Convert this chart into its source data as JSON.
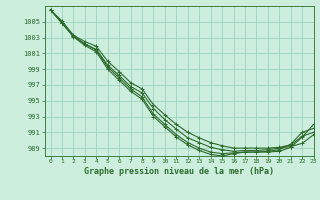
{
  "title": "Graphe pression niveau de la mer (hPa)",
  "background_color": "#cceedd",
  "grid_color": "#99ccbb",
  "line_color": "#2d6b2d",
  "xlim": [
    -0.5,
    23
  ],
  "ylim": [
    988.0,
    1007.0
  ],
  "yticks": [
    989,
    991,
    993,
    995,
    997,
    999,
    1001,
    1003,
    1005
  ],
  "xtick_labels": [
    "0",
    "1",
    "2",
    "3",
    "4",
    "5",
    "6",
    "7",
    "8",
    "9",
    "10",
    "11",
    "12",
    "13",
    "14",
    "15",
    "16",
    "17",
    "18",
    "19",
    "20",
    "21",
    "22",
    "23"
  ],
  "series": [
    [
      1006.5,
      1005.1,
      1003.3,
      1002.5,
      1001.9,
      1000.0,
      998.7,
      997.3,
      996.5,
      994.5,
      993.2,
      992.0,
      991.0,
      990.3,
      989.7,
      989.3,
      989.0,
      989.0,
      989.0,
      989.0,
      989.1,
      989.4,
      990.5,
      991.0
    ],
    [
      1006.5,
      1004.9,
      1003.2,
      1002.2,
      1001.5,
      999.5,
      998.2,
      996.8,
      996.0,
      994.0,
      992.6,
      991.4,
      990.3,
      989.7,
      989.1,
      988.8,
      988.6,
      988.7,
      988.7,
      988.8,
      989.0,
      989.2,
      989.6,
      990.7
    ],
    [
      1006.5,
      1004.9,
      1003.2,
      1002.2,
      1001.4,
      999.3,
      997.9,
      996.5,
      995.5,
      993.3,
      992.0,
      990.7,
      989.7,
      989.0,
      988.5,
      988.3,
      988.4,
      988.5,
      988.5,
      988.6,
      988.8,
      989.5,
      991.0,
      991.5
    ],
    [
      1006.5,
      1004.8,
      1003.1,
      1002.0,
      1001.2,
      999.0,
      997.6,
      996.2,
      995.2,
      993.0,
      991.7,
      990.4,
      989.4,
      988.7,
      988.2,
      988.0,
      988.3,
      988.5,
      988.5,
      988.5,
      988.6,
      989.1,
      990.4,
      992.0
    ]
  ]
}
